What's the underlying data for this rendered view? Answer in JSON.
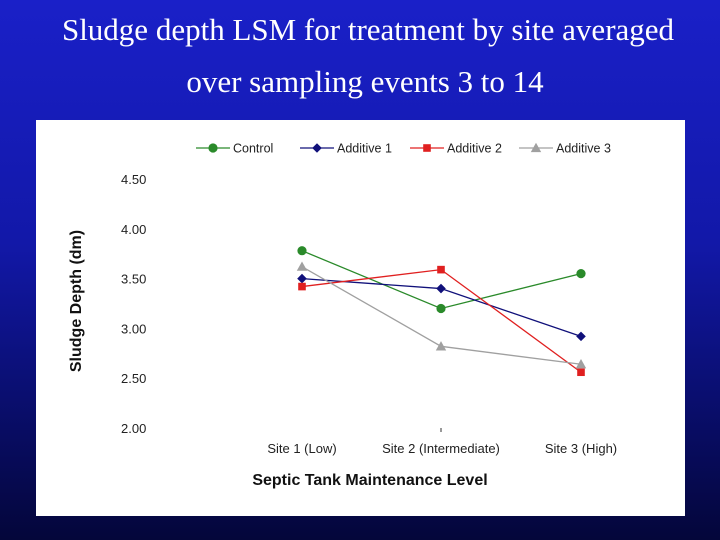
{
  "slide": {
    "title_line_1": "Sludge depth LSM for treatment by site averaged",
    "title_line_2": "over sampling events 3 to 14",
    "background_color": "#1418b0"
  },
  "chart_data": {
    "type": "line",
    "title": "Sludge depth LSM for treatment by site averaged over sampling events 3 to 14",
    "xlabel": "Septic Tank Maintenance Level",
    "ylabel": "Sludge Depth (dm)",
    "categories": [
      "Site 1 (Low)",
      "Site 2 (Intermediate)",
      "Site 3 (High)"
    ],
    "ylim": [
      2.0,
      4.5
    ],
    "yticks": [
      "4.50",
      "4.00",
      "3.50",
      "3.00",
      "2.50",
      "2.00"
    ],
    "grid": false,
    "legend_position": "top",
    "series": [
      {
        "name": "Control",
        "values": [
          3.78,
          3.2,
          3.55
        ],
        "color": "#2a8a2a",
        "marker": "circle"
      },
      {
        "name": "Additive 1",
        "values": [
          3.5,
          3.4,
          2.92
        ],
        "color": "#10107a",
        "marker": "diamond"
      },
      {
        "name": "Additive 2",
        "values": [
          3.42,
          3.59,
          2.56
        ],
        "color": "#e02020",
        "marker": "square"
      },
      {
        "name": "Additive 3",
        "values": [
          3.62,
          2.82,
          2.64
        ],
        "color": "#a0a0a0",
        "marker": "triangle"
      }
    ]
  }
}
